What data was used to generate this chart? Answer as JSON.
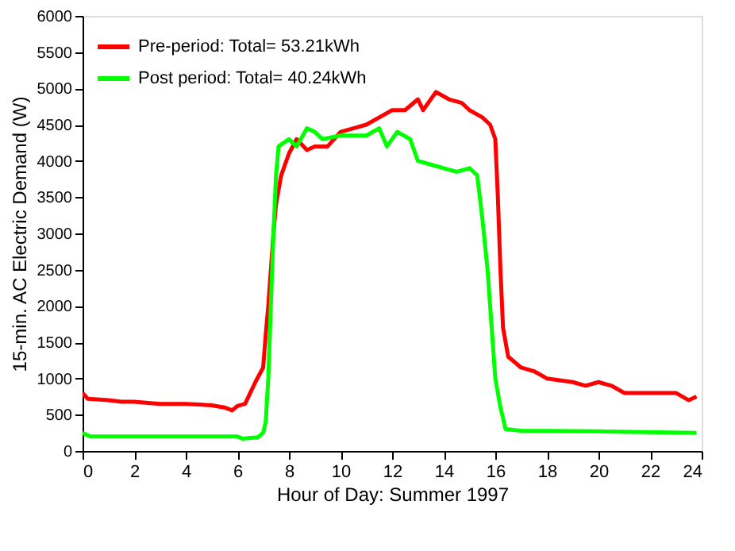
{
  "chart_data": {
    "type": "line",
    "xlabel": "Hour of Day: Summer 1997",
    "ylabel": "15-min. AC Electric Demand (W)",
    "xlim": [
      0,
      24
    ],
    "xticks": [
      0,
      2,
      4,
      6,
      8,
      10,
      12,
      14,
      16,
      18,
      20,
      22,
      24
    ],
    "ylim": [
      0,
      6000
    ],
    "yticks": [
      0,
      500,
      1000,
      1500,
      2000,
      2500,
      3000,
      3500,
      4000,
      4500,
      5000,
      5500,
      6000
    ],
    "grid": false,
    "legend": "top left",
    "marker": "none",
    "line_style": "solid",
    "series": [
      {
        "name": "Pre-period: Total= 53.21kWh",
        "color": "#ff0000",
        "x": [
          0,
          0.2,
          1,
          1.5,
          2,
          3,
          4,
          5,
          5.5,
          5.8,
          6,
          6.3,
          6.5,
          6.7,
          7,
          7.1,
          7.2,
          7.3,
          7.4,
          7.5,
          7.7,
          8,
          8.3,
          8.7,
          9,
          9.5,
          10,
          10.5,
          11,
          11.5,
          12,
          12.5,
          13,
          13.2,
          13.7,
          14.2,
          14.7,
          15,
          15.5,
          15.8,
          16,
          16.1,
          16.2,
          16.3,
          16.5,
          17,
          17.5,
          18,
          19,
          19.5,
          20,
          20.5,
          21,
          22,
          23,
          23.5,
          23.8
        ],
        "values": [
          800,
          720,
          700,
          680,
          680,
          650,
          650,
          630,
          600,
          560,
          620,
          650,
          800,
          950,
          1150,
          1600,
          2000,
          2500,
          3000,
          3400,
          3800,
          4100,
          4300,
          4150,
          4200,
          4200,
          4400,
          4450,
          4500,
          4600,
          4700,
          4700,
          4850,
          4700,
          4950,
          4850,
          4800,
          4700,
          4600,
          4500,
          4300,
          3500,
          2500,
          1700,
          1300,
          1150,
          1100,
          1000,
          950,
          900,
          950,
          900,
          800,
          800,
          800,
          700,
          750
        ]
      },
      {
        "name": "Post period: Total=  40.24kWh",
        "color": "#00ff00",
        "x": [
          0,
          0.3,
          6,
          6.2,
          6.8,
          7,
          7.1,
          7.2,
          7.3,
          7.4,
          7.5,
          7.6,
          8,
          8.3,
          8.7,
          9,
          9.3,
          10,
          11,
          11.5,
          11.8,
          12.2,
          12.7,
          13,
          13.5,
          14,
          14.5,
          15,
          15.3,
          15.5,
          15.7,
          15.9,
          16,
          16.2,
          16.4,
          17,
          20,
          23.8
        ],
        "values": [
          250,
          200,
          200,
          170,
          190,
          250,
          400,
          1000,
          2000,
          3000,
          3800,
          4200,
          4300,
          4200,
          4450,
          4400,
          4300,
          4350,
          4350,
          4450,
          4200,
          4400,
          4300,
          4000,
          3950,
          3900,
          3850,
          3900,
          3800,
          3200,
          2500,
          1500,
          1000,
          600,
          300,
          280,
          270,
          250
        ]
      }
    ]
  }
}
